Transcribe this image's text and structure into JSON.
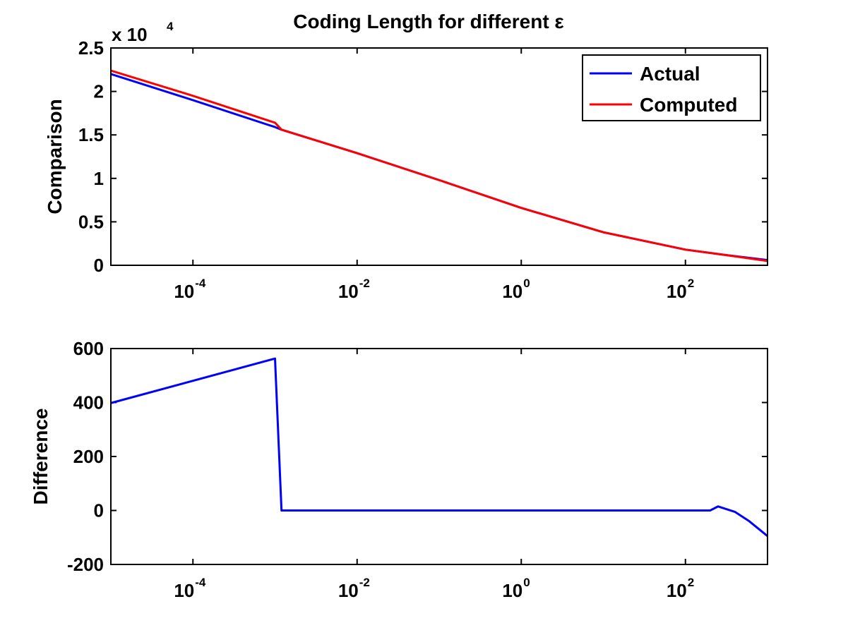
{
  "chart_data": [
    {
      "type": "line",
      "title": "Coding Length for different ε",
      "ylabel": "Comparison",
      "xlabel": "",
      "xscale": "log",
      "xlim": [
        1e-05,
        1000
      ],
      "ylim": [
        0,
        25000
      ],
      "y_multiplier_text": "x 10",
      "y_multiplier_exp": "4",
      "y_ticks": [
        {
          "value": 0,
          "label": "0"
        },
        {
          "value": 5000,
          "label": "0.5"
        },
        {
          "value": 10000,
          "label": "1"
        },
        {
          "value": 15000,
          "label": "1.5"
        },
        {
          "value": 20000,
          "label": "2"
        },
        {
          "value": 25000,
          "label": "2.5"
        }
      ],
      "x_ticks": [
        {
          "value": 0.0001,
          "base": "10",
          "exp": "-4"
        },
        {
          "value": 0.01,
          "base": "10",
          "exp": "-2"
        },
        {
          "value": 1,
          "base": "10",
          "exp": "0"
        },
        {
          "value": 100,
          "base": "10",
          "exp": "2"
        }
      ],
      "legend": {
        "placement": "top-right"
      },
      "series": [
        {
          "name": "Actual",
          "color": "#0000ff",
          "points": [
            [
              1e-05,
              22000
            ],
            [
              0.0001,
              19000
            ],
            [
              0.001,
              15900
            ],
            [
              0.0012,
              15600
            ],
            [
              0.01,
              12900
            ],
            [
              0.1,
              9800
            ],
            [
              1,
              6600
            ],
            [
              10,
              3800
            ],
            [
              100,
              1800
            ],
            [
              300,
              1200
            ],
            [
              1000,
              600
            ]
          ]
        },
        {
          "name": "Computed",
          "color": "#ff0000",
          "points": [
            [
              1e-05,
              22400
            ],
            [
              0.0001,
              19500
            ],
            [
              0.001,
              16400
            ],
            [
              0.0012,
              15600
            ],
            [
              0.01,
              12900
            ],
            [
              0.1,
              9800
            ],
            [
              1,
              6600
            ],
            [
              10,
              3800
            ],
            [
              100,
              1800
            ],
            [
              300,
              1200
            ],
            [
              1000,
              500
            ]
          ]
        }
      ]
    },
    {
      "type": "line",
      "title": "",
      "ylabel": "Difference",
      "xlabel": "",
      "xscale": "log",
      "xlim": [
        1e-05,
        1000
      ],
      "ylim": [
        -200,
        600
      ],
      "y_ticks": [
        {
          "value": -200,
          "label": "-200"
        },
        {
          "value": 0,
          "label": "0"
        },
        {
          "value": 200,
          "label": "200"
        },
        {
          "value": 400,
          "label": "400"
        },
        {
          "value": 600,
          "label": "600"
        }
      ],
      "x_ticks": [
        {
          "value": 0.0001,
          "base": "10",
          "exp": "-4"
        },
        {
          "value": 0.01,
          "base": "10",
          "exp": "-2"
        },
        {
          "value": 1,
          "base": "10",
          "exp": "0"
        },
        {
          "value": 100,
          "base": "10",
          "exp": "2"
        }
      ],
      "series": [
        {
          "color": "#0000ff",
          "points": [
            [
              1e-05,
              398
            ],
            [
              0.001,
              563
            ],
            [
              0.0012,
              0
            ],
            [
              200,
              0
            ],
            [
              250,
              15
            ],
            [
              400,
              -5
            ],
            [
              600,
              -40
            ],
            [
              1000,
              -95
            ]
          ]
        }
      ]
    }
  ]
}
